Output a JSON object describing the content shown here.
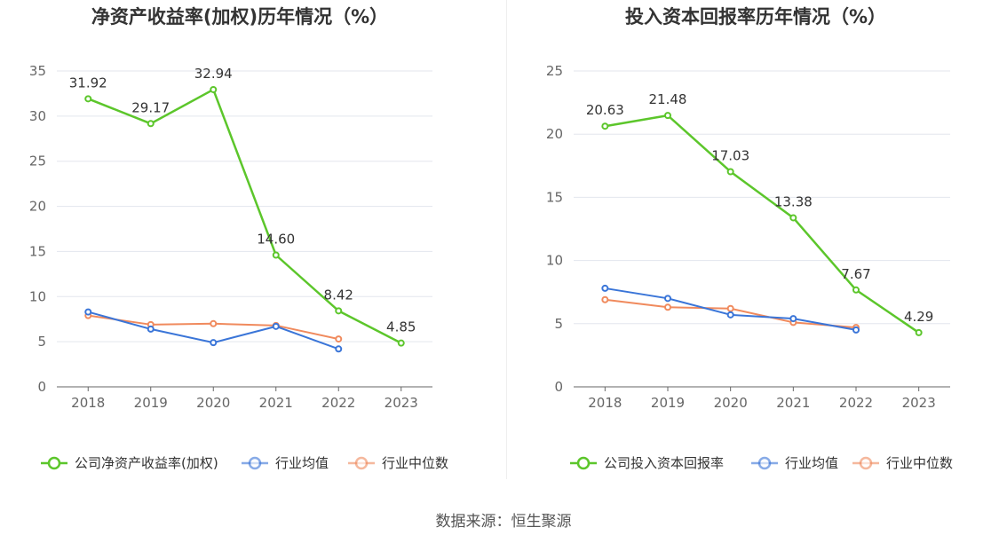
{
  "colors": {
    "company": "#5cc62b",
    "industry_avg": "#3a75d8",
    "industry_median": "#f08a5d",
    "grid": "#e3e6ee",
    "axis": "#666666",
    "tick_text": "#666666",
    "label_text": "#333333",
    "title": "#333333"
  },
  "source": "数据来源：恒生聚源",
  "chart_data": [
    {
      "type": "line",
      "title": "净资产收益率(加权)历年情况（%）",
      "categories": [
        "2018",
        "2019",
        "2020",
        "2021",
        "2022",
        "2023"
      ],
      "ylim": [
        0,
        35
      ],
      "yticks": [
        0,
        5,
        10,
        15,
        20,
        25,
        30,
        35
      ],
      "series": [
        {
          "name": "公司净资产收益率(加权)",
          "key": "company",
          "values": [
            31.92,
            29.17,
            32.94,
            14.6,
            8.42,
            4.85
          ],
          "labels": [
            "31.92",
            "29.17",
            "32.94",
            "14.60",
            "8.42",
            "4.85"
          ]
        },
        {
          "name": "行业均值",
          "key": "industry_avg",
          "values": [
            8.3,
            6.4,
            4.9,
            6.7,
            4.2,
            null
          ]
        },
        {
          "name": "行业中位数",
          "key": "industry_median",
          "values": [
            7.9,
            6.9,
            7.0,
            6.8,
            5.3,
            null
          ]
        }
      ]
    },
    {
      "type": "line",
      "title": "投入资本回报率历年情况（%）",
      "categories": [
        "2018",
        "2019",
        "2020",
        "2021",
        "2022",
        "2023"
      ],
      "ylim": [
        0,
        25
      ],
      "yticks": [
        0,
        5,
        10,
        15,
        20,
        25
      ],
      "series": [
        {
          "name": "公司投入资本回报率",
          "key": "company",
          "values": [
            20.63,
            21.48,
            17.03,
            13.38,
            7.67,
            4.29
          ],
          "labels": [
            "20.63",
            "21.48",
            "17.03",
            "13.38",
            "7.67",
            "4.29"
          ]
        },
        {
          "name": "行业均值",
          "key": "industry_avg",
          "values": [
            7.8,
            7.0,
            5.7,
            5.4,
            4.5,
            null
          ]
        },
        {
          "name": "行业中位数",
          "key": "industry_median",
          "values": [
            6.9,
            6.3,
            6.2,
            5.1,
            4.7,
            null
          ]
        }
      ]
    }
  ]
}
